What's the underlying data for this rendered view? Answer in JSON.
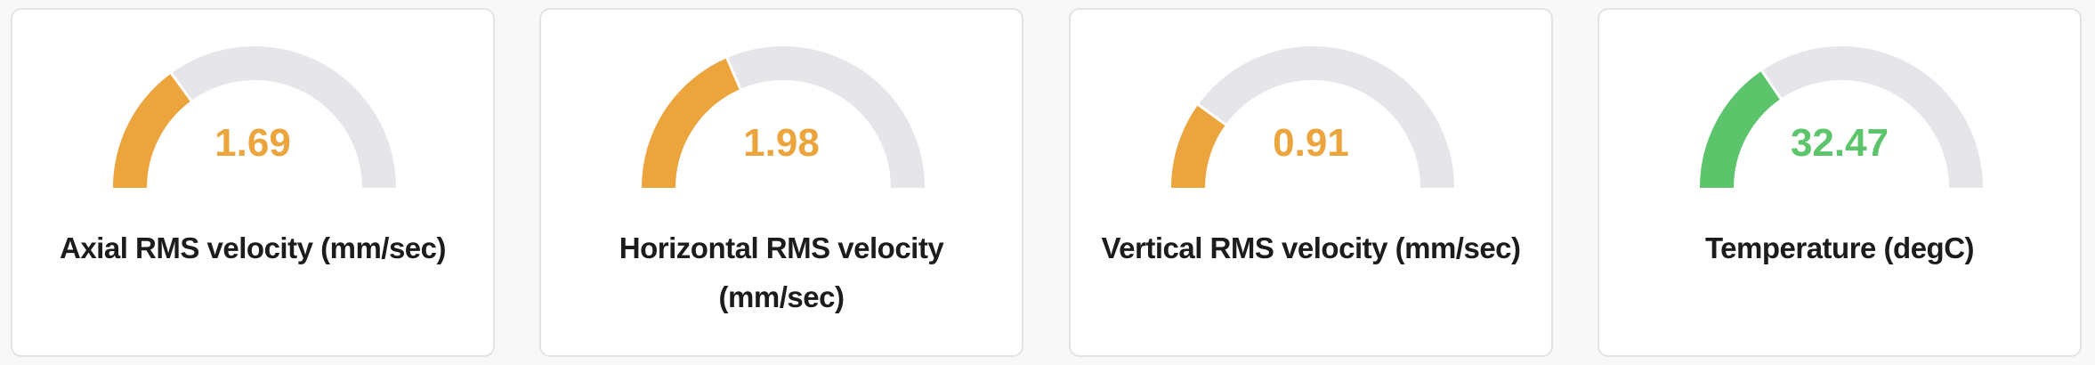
{
  "colors": {
    "warning": "#eca43c",
    "ok": "#5cc46a",
    "track": "#e6e6ea"
  },
  "gauges": [
    {
      "title": "Axial RMS velocity (mm/sec)",
      "value": "1.69",
      "fill_fraction": 0.3,
      "status": "warning"
    },
    {
      "title": "Horizontal RMS velocity (mm/sec)",
      "value": "1.98",
      "fill_fraction": 0.37,
      "status": "warning"
    },
    {
      "title": "Vertical RMS velocity (mm/sec)",
      "value": "0.91",
      "fill_fraction": 0.2,
      "status": "warning"
    },
    {
      "title": "Temperature (degC)",
      "value": "32.47",
      "fill_fraction": 0.31,
      "status": "ok"
    }
  ]
}
